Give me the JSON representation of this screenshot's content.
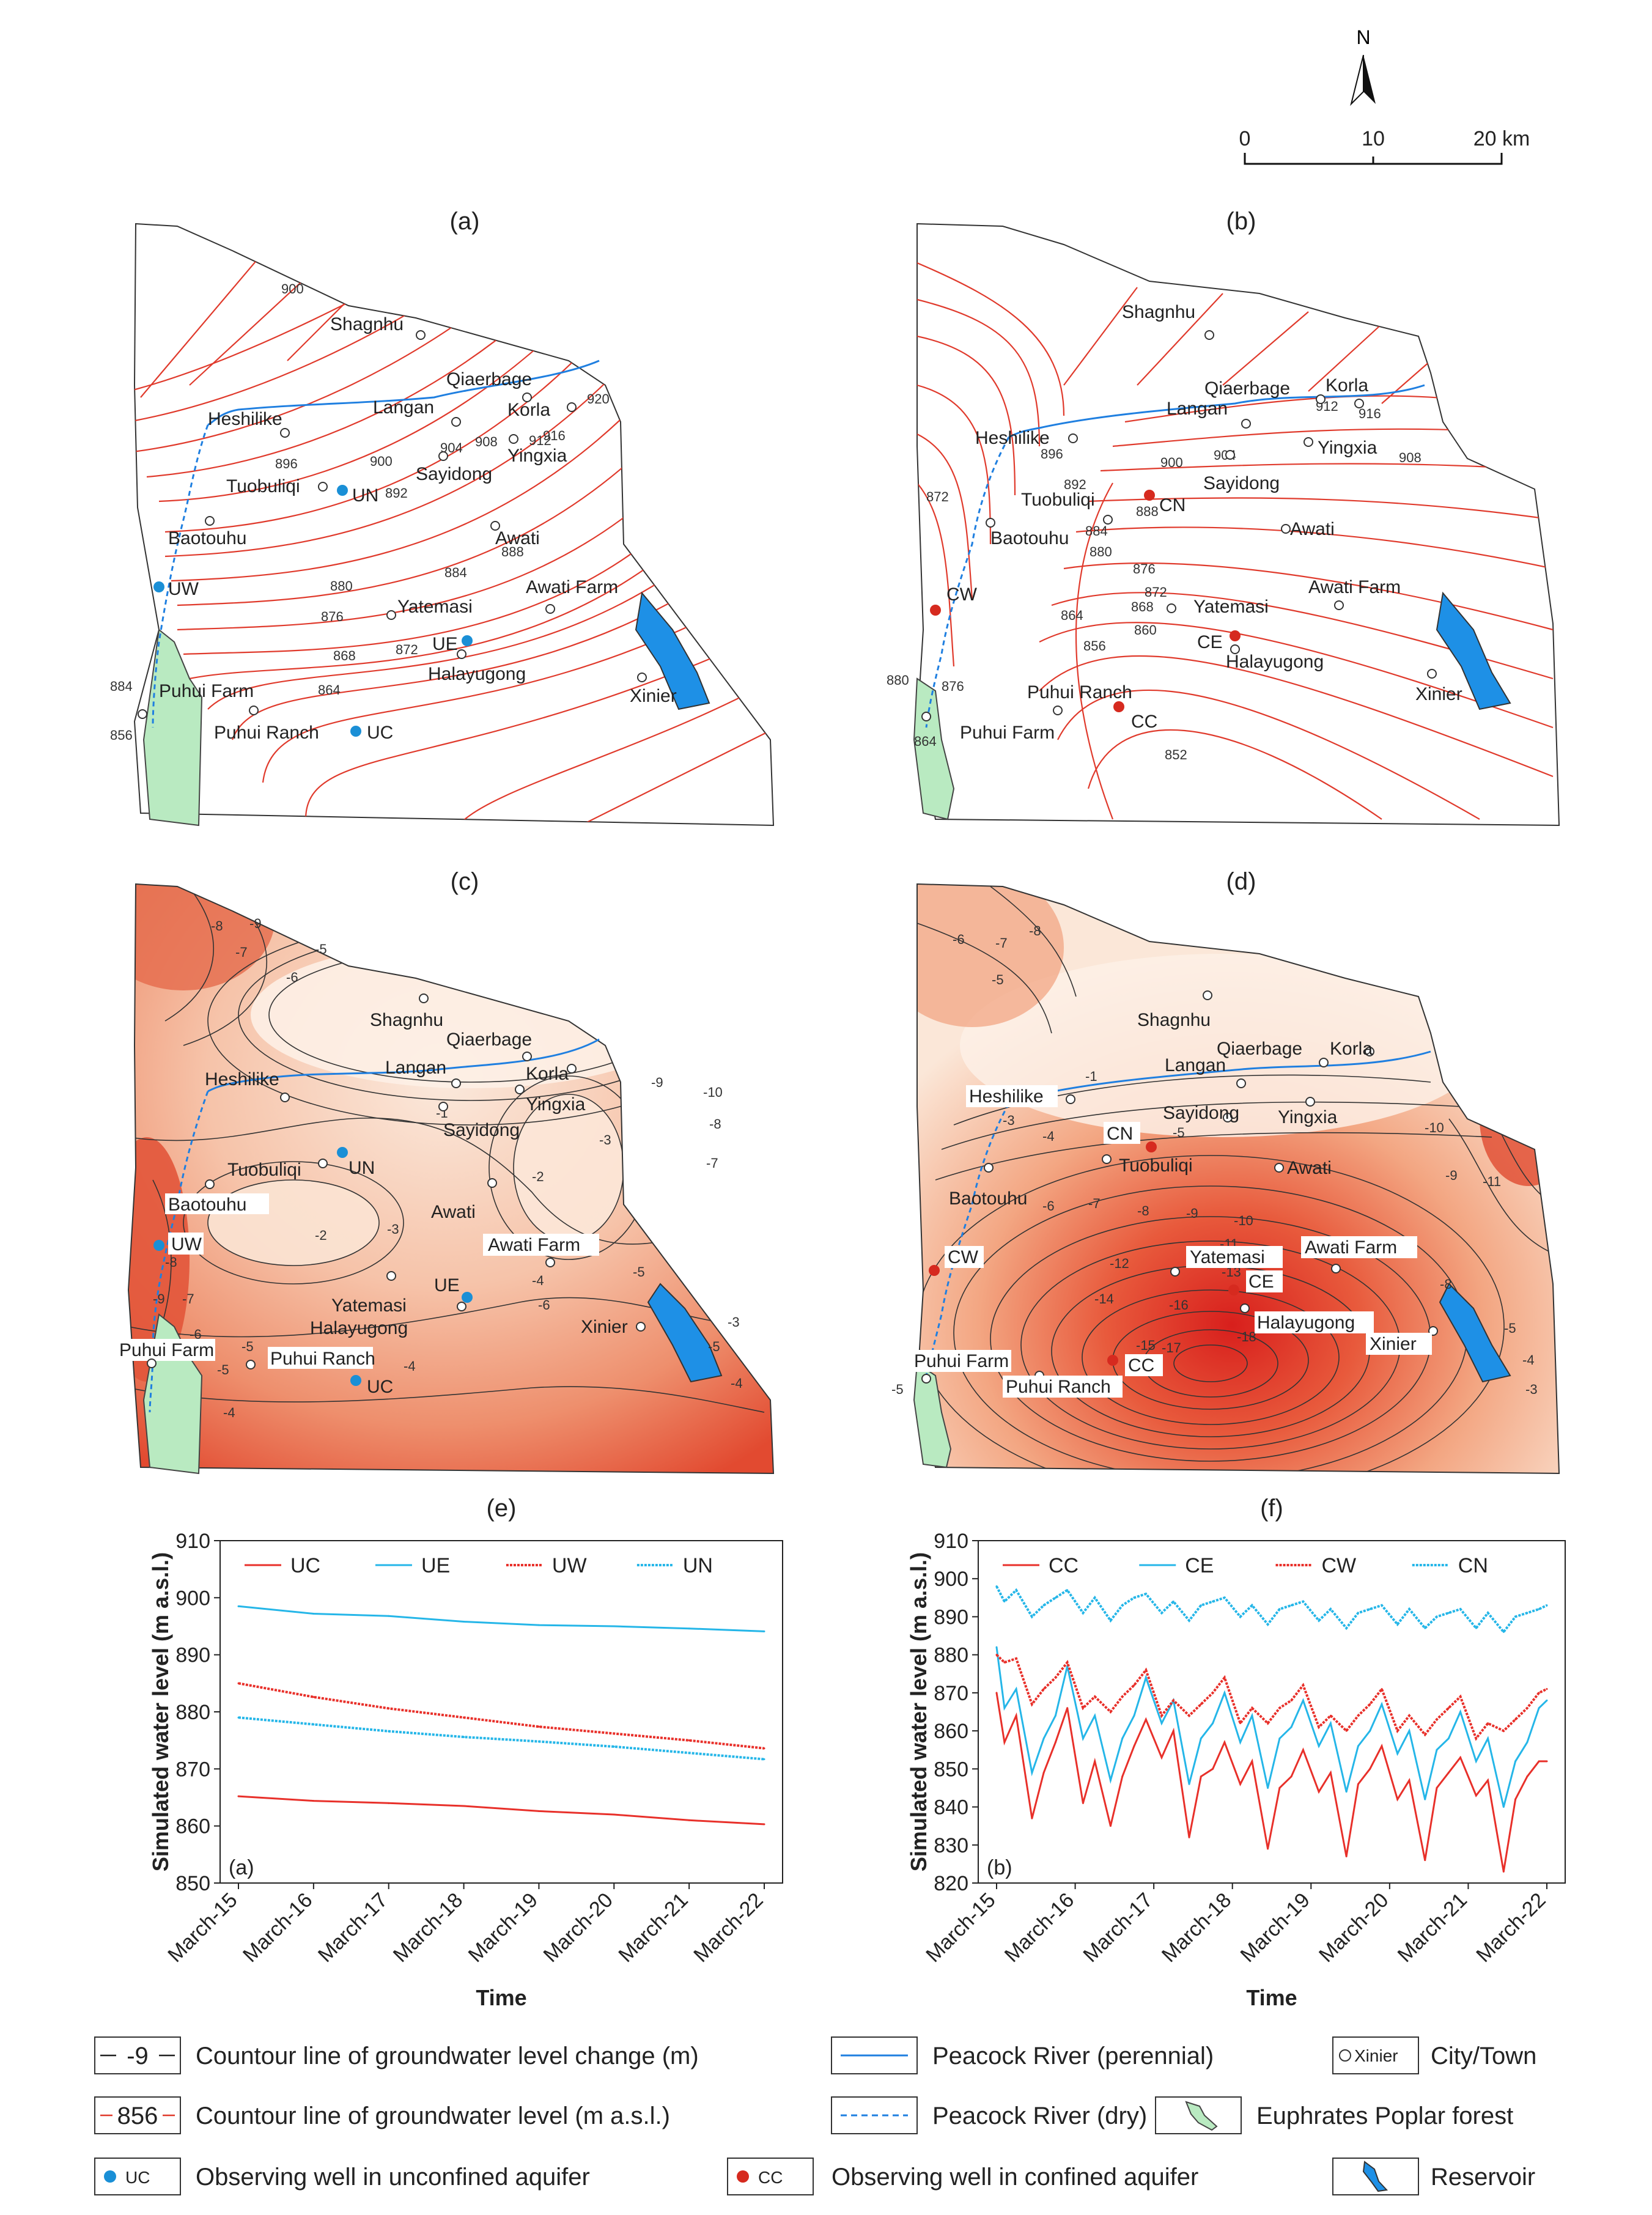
{
  "north_arrow": {
    "letter": "N"
  },
  "scalebar": {
    "ticks": [
      "0",
      "10",
      "20 km"
    ]
  },
  "panels": {
    "a": {
      "label": "(a)",
      "contour_labels": [
        "900",
        "896",
        "900",
        "892",
        "904",
        "908",
        "912",
        "916",
        "920",
        "888",
        "884",
        "880",
        "876",
        "872",
        "868",
        "864",
        "884",
        "856"
      ],
      "towns": [
        "Shagnhu",
        "Qiaerbage",
        "Langan",
        "Korla",
        "Heshilike",
        "Yingxia",
        "Sayidong",
        "Tuobuliqi",
        "Baotouhu",
        "Awati",
        "Awati Farm",
        "Yatemasi",
        "Halayugong",
        "Xinier",
        "Puhui Farm",
        "Puhui Ranch"
      ],
      "wells": [
        "UN",
        "UW",
        "UE",
        "UC"
      ]
    },
    "b": {
      "label": "(b)",
      "contour_labels": [
        "912",
        "916",
        "896",
        "900",
        "904",
        "908",
        "892",
        "888",
        "884",
        "880",
        "876",
        "872",
        "868",
        "864",
        "860",
        "856",
        "852",
        "880",
        "876",
        "864",
        "872"
      ],
      "towns": [
        "Shagnhu",
        "Qiaerbage",
        "Korla",
        "Langan",
        "Heshilike",
        "Yingxia",
        "Sayidong",
        "Tuobuliqi",
        "Baotouhu",
        "Awati",
        "Awati Farm",
        "Yatemasi",
        "Halayugong",
        "Xinier",
        "Puhui Ranch",
        "Puhui Farm"
      ],
      "wells": [
        "CN",
        "CW",
        "CE",
        "CC"
      ]
    },
    "c": {
      "label": "(c)",
      "contour_labels": [
        "-8",
        "-9",
        "-7",
        "-5",
        "-6",
        "-1",
        "-2",
        "-3",
        "-3",
        "-2",
        "-4",
        "-5",
        "-6",
        "-8",
        "-9",
        "-7",
        "-6",
        "-5",
        "-5",
        "-4",
        "-4",
        "-9",
        "-10",
        "-8",
        "-7",
        "-3",
        "-5",
        "-4"
      ],
      "towns": [
        "Shagnhu",
        "Qiaerbage",
        "Langan",
        "Heshilike",
        "Korla",
        "Yingxia",
        "Sayidong",
        "Tuobuliqi",
        "Baotouhu",
        "Awati",
        "Awati Farm",
        "Yatemasi",
        "Halayugong",
        "Xinier",
        "Puhui Farm",
        "Puhui Ranch"
      ],
      "wells": [
        "UN",
        "UW",
        "UE",
        "UC"
      ]
    },
    "d": {
      "label": "(d)",
      "contour_labels": [
        "-6",
        "-7",
        "-8",
        "-5",
        "-1",
        "-2",
        "-3",
        "-4",
        "-5",
        "-6",
        "-7",
        "-8",
        "-9",
        "-10",
        "-11",
        "-12",
        "-13",
        "-14",
        "-16",
        "-15",
        "-17",
        "-18",
        "-10",
        "-9",
        "-11",
        "-8",
        "-5",
        "-4",
        "-3",
        "-5"
      ],
      "towns": [
        "Shagnhu",
        "Qiaerbage",
        "Korla",
        "Langan",
        "Heshilike",
        "Sayidong",
        "Yingxia",
        "Tuobuliqi",
        "Awati",
        "Baotouhu",
        "Yatemasi",
        "Awati Farm",
        "Halayugong",
        "Xinier",
        "Puhui Farm",
        "Puhui Ranch"
      ],
      "wells": [
        "CN",
        "CW",
        "CE",
        "CC"
      ]
    }
  },
  "chart_data": [
    {
      "type": "line",
      "panel_label": "(e)",
      "inner_label": "(a)",
      "ylabel": "Simulated water level (m a.s.l.)",
      "xlabel": "Time",
      "ylim": [
        850,
        910
      ],
      "yticks": [
        "850",
        "860",
        "870",
        "880",
        "890",
        "900",
        "910"
      ],
      "categories": [
        "March-15",
        "March-16",
        "March-17",
        "March-18",
        "March-19",
        "March-20",
        "March-21",
        "March-22"
      ],
      "x": [
        0,
        1,
        2,
        3,
        4,
        5,
        6,
        7
      ],
      "series": [
        {
          "name": "UC",
          "color": "#e8302a",
          "style": "solid",
          "values": [
            865.2,
            864.4,
            864.0,
            863.5,
            862.6,
            862.0,
            861.0,
            860.3
          ]
        },
        {
          "name": "UE",
          "color": "#25b6e8",
          "style": "solid",
          "values": [
            898.5,
            897.2,
            896.8,
            895.8,
            895.2,
            895.0,
            894.6,
            894.1
          ]
        },
        {
          "name": "UW",
          "color": "#e8302a",
          "style": "dotted",
          "values": [
            885.0,
            882.6,
            880.6,
            879.0,
            877.4,
            876.2,
            875.0,
            873.6
          ]
        },
        {
          "name": "UN",
          "color": "#25b6e8",
          "style": "dotted",
          "values": [
            879.0,
            877.8,
            876.6,
            875.6,
            874.8,
            873.9,
            872.8,
            871.7
          ]
        }
      ]
    },
    {
      "type": "line",
      "panel_label": "(f)",
      "inner_label": "(b)",
      "ylabel": "Simulated water level (m a.s.l.)",
      "xlabel": "Time",
      "ylim": [
        820,
        910
      ],
      "yticks": [
        "820",
        "830",
        "840",
        "850",
        "860",
        "870",
        "880",
        "890",
        "900",
        "910"
      ],
      "categories": [
        "March-15",
        "March-16",
        "March-17",
        "March-18",
        "March-19",
        "March-20",
        "March-21",
        "March-22"
      ],
      "x": [
        0,
        0.1,
        0.25,
        0.45,
        0.6,
        0.75,
        0.9,
        1.1,
        1.25,
        1.45,
        1.6,
        1.75,
        1.9,
        2.1,
        2.25,
        2.45,
        2.6,
        2.75,
        2.9,
        3.1,
        3.25,
        3.45,
        3.6,
        3.75,
        3.9,
        4.1,
        4.25,
        4.45,
        4.6,
        4.75,
        4.9,
        5.1,
        5.25,
        5.45,
        5.6,
        5.75,
        5.9,
        6.1,
        6.25,
        6.45,
        6.6,
        6.75,
        6.9,
        7.0
      ],
      "series": [
        {
          "name": "CC",
          "color": "#e8302a",
          "style": "solid",
          "values": [
            870,
            857,
            864,
            837,
            849,
            857,
            866,
            841,
            852,
            835,
            848,
            856,
            863,
            853,
            860,
            832,
            848,
            850,
            857,
            846,
            852,
            829,
            845,
            848,
            855,
            844,
            849,
            827,
            846,
            850,
            856,
            842,
            847,
            826,
            845,
            849,
            853,
            843,
            847,
            823,
            842,
            848,
            852,
            852
          ]
        },
        {
          "name": "CE",
          "color": "#25b6e8",
          "style": "solid",
          "values": [
            882,
            866,
            871,
            849,
            858,
            864,
            877,
            858,
            864,
            847,
            858,
            864,
            874,
            862,
            868,
            846,
            858,
            862,
            870,
            857,
            864,
            845,
            858,
            861,
            868,
            856,
            862,
            844,
            856,
            860,
            867,
            854,
            860,
            842,
            855,
            858,
            865,
            852,
            858,
            840,
            852,
            857,
            866,
            868
          ]
        },
        {
          "name": "CW",
          "color": "#e8302a",
          "style": "dotted",
          "values": [
            880,
            878,
            879,
            867,
            871,
            874,
            878,
            866,
            869,
            865,
            869,
            872,
            876,
            864,
            868,
            864,
            867,
            870,
            874,
            862,
            866,
            862,
            866,
            868,
            872,
            861,
            864,
            860,
            864,
            867,
            871,
            860,
            864,
            859,
            863,
            866,
            869,
            858,
            862,
            860,
            863,
            866,
            870,
            871
          ]
        },
        {
          "name": "CN",
          "color": "#25b6e8",
          "style": "dotted",
          "values": [
            898,
            894,
            897,
            890,
            893,
            895,
            897,
            891,
            895,
            889,
            893,
            895,
            896,
            891,
            894,
            889,
            893,
            894,
            895,
            890,
            893,
            888,
            892,
            893,
            894,
            889,
            892,
            887,
            891,
            892,
            893,
            888,
            892,
            887,
            890,
            891,
            892,
            887,
            891,
            886,
            890,
            891,
            892,
            893
          ]
        }
      ]
    }
  ],
  "legend": {
    "items": [
      {
        "symbol": "-9",
        "text": "Countour line of groundwater level change (m)"
      },
      {
        "symbol": "",
        "text": "Peacock River (perennial)"
      },
      {
        "symbol": "Xinier",
        "text": "City/Town"
      },
      {
        "symbol": "856",
        "text": "Countour line of groundwater level (m a.s.l.)"
      },
      {
        "symbol": "",
        "text": "Peacock River (dry)"
      },
      {
        "symbol": "",
        "text": "Euphrates Poplar forest"
      },
      {
        "symbol": "UC",
        "text": "Observing well in unconfined aquifer"
      },
      {
        "symbol": "CC",
        "text": "Observing well in confined aquifer"
      },
      {
        "symbol": "",
        "text": "Reservoir"
      }
    ]
  },
  "colors": {
    "contour_red": "#e03a2c",
    "river": "#1f7fe0",
    "well_blue": "#1a8fd6",
    "well_red": "#d62a1f",
    "forest": "#b9eac1",
    "reservoir": "#1e90e6",
    "heat_low": "#fbe6d8",
    "heat_high": "#e24a30"
  }
}
